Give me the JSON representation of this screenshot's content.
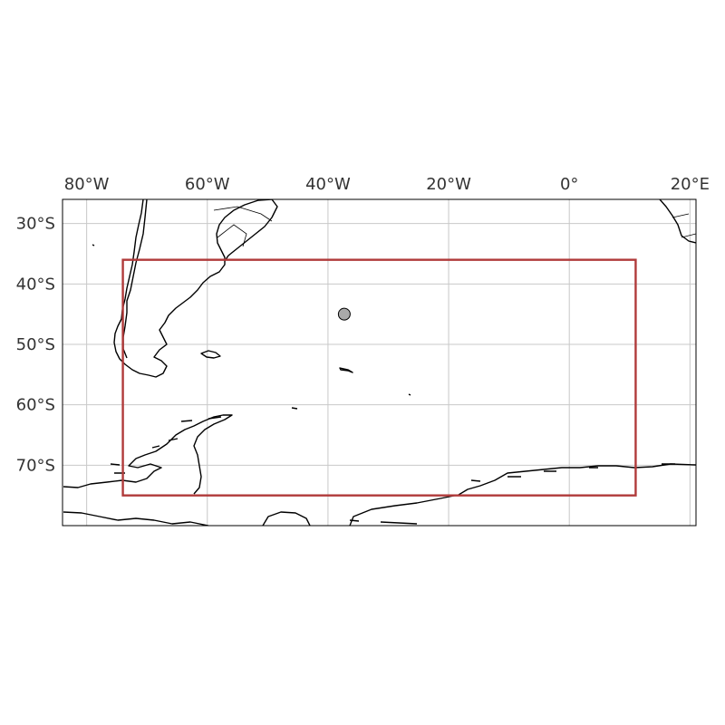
{
  "map": {
    "extent": {
      "lon_min": -84,
      "lon_max": 21,
      "lat_min": -80,
      "lat_max": -26
    },
    "lon_ticks": [
      {
        "value": -80,
        "label": "80°W"
      },
      {
        "value": -60,
        "label": "60°W"
      },
      {
        "value": -40,
        "label": "40°W"
      },
      {
        "value": -20,
        "label": "20°W"
      },
      {
        "value": 0,
        "label": "0°"
      },
      {
        "value": 20,
        "label": "20°E"
      }
    ],
    "lat_ticks": [
      {
        "value": -30,
        "label": "30°S"
      },
      {
        "value": -40,
        "label": "40°S"
      },
      {
        "value": -50,
        "label": "50°S"
      },
      {
        "value": -60,
        "label": "60°S"
      },
      {
        "value": -70,
        "label": "70°S"
      }
    ],
    "gridlines": true,
    "region_box": {
      "lon_min": -74,
      "lon_max": 11,
      "lat_min": -75,
      "lat_max": -36,
      "color": "#b03a3a"
    },
    "point_marker": {
      "lon": -37.3,
      "lat": -45,
      "color": "#aaaaaa"
    }
  }
}
